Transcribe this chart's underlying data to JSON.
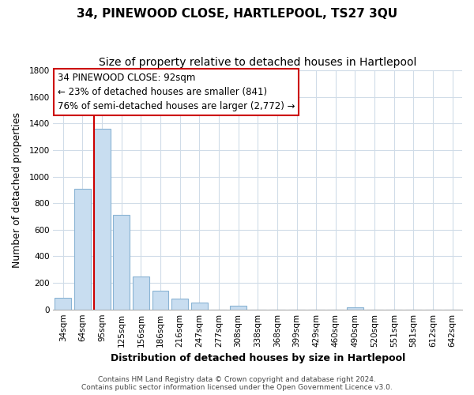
{
  "title": "34, PINEWOOD CLOSE, HARTLEPOOL, TS27 3QU",
  "subtitle": "Size of property relative to detached houses in Hartlepool",
  "xlabel": "Distribution of detached houses by size in Hartlepool",
  "ylabel": "Number of detached properties",
  "categories": [
    "34sqm",
    "64sqm",
    "95sqm",
    "125sqm",
    "156sqm",
    "186sqm",
    "216sqm",
    "247sqm",
    "277sqm",
    "308sqm",
    "338sqm",
    "368sqm",
    "399sqm",
    "429sqm",
    "460sqm",
    "490sqm",
    "520sqm",
    "551sqm",
    "581sqm",
    "612sqm",
    "642sqm"
  ],
  "values": [
    90,
    910,
    1360,
    710,
    250,
    140,
    80,
    50,
    0,
    30,
    0,
    0,
    0,
    0,
    0,
    15,
    0,
    0,
    0,
    0,
    0
  ],
  "bar_color": "#c8ddf0",
  "bar_edge_color": "#8ab4d4",
  "highlight_bar_index": 2,
  "property_line_color": "#cc0000",
  "ylim": [
    0,
    1800
  ],
  "yticks": [
    0,
    200,
    400,
    600,
    800,
    1000,
    1200,
    1400,
    1600,
    1800
  ],
  "annotation_title": "34 PINEWOOD CLOSE: 92sqm",
  "annotation_line1": "← 23% of detached houses are smaller (841)",
  "annotation_line2": "76% of semi-detached houses are larger (2,772) →",
  "footer_line1": "Contains HM Land Registry data © Crown copyright and database right 2024.",
  "footer_line2": "Contains public sector information licensed under the Open Government Licence v3.0.",
  "background_color": "#ffffff",
  "grid_color": "#d0dce8",
  "title_fontsize": 11,
  "subtitle_fontsize": 10,
  "axis_label_fontsize": 9,
  "tick_fontsize": 7.5,
  "annotation_fontsize": 8.5,
  "footer_fontsize": 6.5
}
